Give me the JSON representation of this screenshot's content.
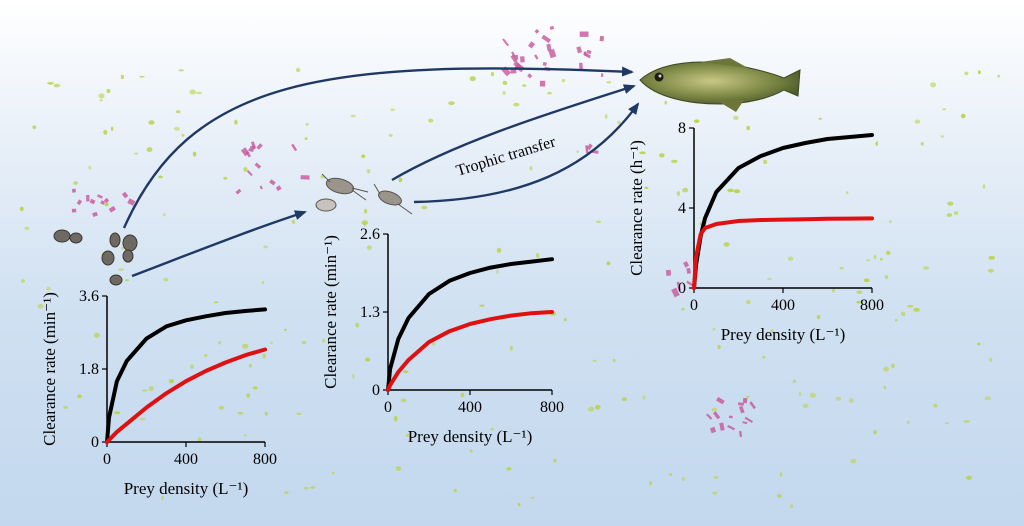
{
  "annotation": {
    "trophic_transfer": "Trophic transfer"
  },
  "colors": {
    "arrow": "#1f3864",
    "curve_a": "#000000",
    "curve_b": "#e01010",
    "algae": "#b9d34a",
    "microplastic": "#c8559a"
  },
  "organisms": {
    "predator": "fish-icon",
    "intermediate": "copepod-icon",
    "primary_consumer": "rotifer-icon"
  },
  "chart_data": [
    {
      "type": "line",
      "xlabel": "Prey density (L⁻¹)",
      "ylabel": "Clearance rate (min⁻¹)",
      "xlim": [
        0,
        800
      ],
      "ylim": [
        0,
        3.6
      ],
      "x_ticks": [
        "0",
        "400",
        "800"
      ],
      "y_ticks": [
        "0",
        "1.8",
        "3.6"
      ],
      "series": [
        {
          "color": "#000000",
          "x": [
            0,
            10,
            50,
            100,
            200,
            300,
            400,
            500,
            600,
            700,
            800
          ],
          "y": [
            0,
            0.6,
            1.5,
            2.0,
            2.55,
            2.85,
            3.0,
            3.1,
            3.18,
            3.23,
            3.27
          ]
        },
        {
          "color": "#e01010",
          "x": [
            0,
            10,
            50,
            100,
            200,
            300,
            400,
            500,
            600,
            700,
            800
          ],
          "y": [
            0,
            0.05,
            0.25,
            0.45,
            0.85,
            1.2,
            1.5,
            1.75,
            1.96,
            2.14,
            2.28
          ]
        }
      ]
    },
    {
      "type": "line",
      "xlabel": "Prey density (L⁻¹)",
      "ylabel": "Clearance rate (min⁻¹)",
      "xlim": [
        0,
        800
      ],
      "ylim": [
        0,
        2.6
      ],
      "x_ticks": [
        "0",
        "400",
        "800"
      ],
      "y_ticks": [
        "0",
        "1.3",
        "2.6"
      ],
      "series": [
        {
          "color": "#000000",
          "x": [
            0,
            10,
            50,
            100,
            200,
            300,
            400,
            500,
            600,
            700,
            800
          ],
          "y": [
            0,
            0.35,
            0.85,
            1.2,
            1.6,
            1.82,
            1.95,
            2.04,
            2.1,
            2.14,
            2.18
          ]
        },
        {
          "color": "#e01010",
          "x": [
            0,
            10,
            50,
            100,
            200,
            300,
            400,
            500,
            600,
            700,
            800
          ],
          "y": [
            0,
            0.08,
            0.3,
            0.5,
            0.8,
            0.98,
            1.1,
            1.18,
            1.24,
            1.28,
            1.3
          ]
        }
      ]
    },
    {
      "type": "line",
      "xlabel": "Prey density (L⁻¹)",
      "ylabel": "Clearance rate (h⁻¹)",
      "xlim": [
        0,
        800
      ],
      "ylim": [
        0,
        8
      ],
      "x_ticks": [
        "0",
        "400",
        "800"
      ],
      "y_ticks": [
        "0",
        "4",
        "8"
      ],
      "series": [
        {
          "color": "#000000",
          "x": [
            0,
            10,
            30,
            50,
            100,
            200,
            300,
            400,
            500,
            600,
            700,
            800
          ],
          "y": [
            0,
            1.2,
            2.6,
            3.5,
            4.8,
            6.0,
            6.6,
            7.0,
            7.25,
            7.45,
            7.55,
            7.65
          ]
        },
        {
          "color": "#e01010",
          "x": [
            0,
            10,
            30,
            50,
            100,
            200,
            300,
            400,
            500,
            600,
            700,
            800
          ],
          "y": [
            0,
            1.6,
            2.7,
            3.0,
            3.2,
            3.35,
            3.4,
            3.42,
            3.44,
            3.46,
            3.47,
            3.48
          ]
        }
      ]
    }
  ]
}
